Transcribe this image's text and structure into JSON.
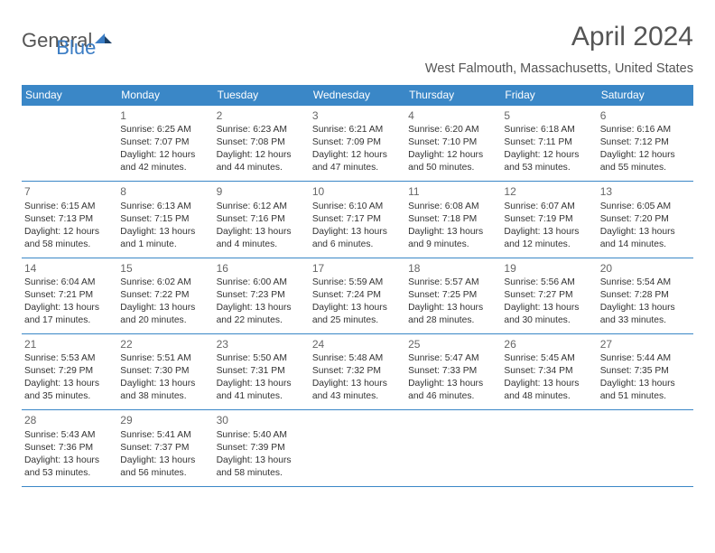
{
  "brand": {
    "part1": "General",
    "part2": "Blue"
  },
  "title": "April 2024",
  "location": "West Falmouth, Massachusetts, United States",
  "colors": {
    "header_bg": "#3a87c7",
    "header_fg": "#ffffff",
    "border": "#3a87c7",
    "text": "#333333",
    "muted": "#666666",
    "brand_gray": "#555555",
    "brand_blue": "#3a7cc4",
    "background": "#ffffff"
  },
  "weekdays": [
    "Sunday",
    "Monday",
    "Tuesday",
    "Wednesday",
    "Thursday",
    "Friday",
    "Saturday"
  ],
  "weeks": [
    [
      null,
      {
        "num": "1",
        "sr": "Sunrise: 6:25 AM",
        "ss": "Sunset: 7:07 PM",
        "d1": "Daylight: 12 hours",
        "d2": "and 42 minutes."
      },
      {
        "num": "2",
        "sr": "Sunrise: 6:23 AM",
        "ss": "Sunset: 7:08 PM",
        "d1": "Daylight: 12 hours",
        "d2": "and 44 minutes."
      },
      {
        "num": "3",
        "sr": "Sunrise: 6:21 AM",
        "ss": "Sunset: 7:09 PM",
        "d1": "Daylight: 12 hours",
        "d2": "and 47 minutes."
      },
      {
        "num": "4",
        "sr": "Sunrise: 6:20 AM",
        "ss": "Sunset: 7:10 PM",
        "d1": "Daylight: 12 hours",
        "d2": "and 50 minutes."
      },
      {
        "num": "5",
        "sr": "Sunrise: 6:18 AM",
        "ss": "Sunset: 7:11 PM",
        "d1": "Daylight: 12 hours",
        "d2": "and 53 minutes."
      },
      {
        "num": "6",
        "sr": "Sunrise: 6:16 AM",
        "ss": "Sunset: 7:12 PM",
        "d1": "Daylight: 12 hours",
        "d2": "and 55 minutes."
      }
    ],
    [
      {
        "num": "7",
        "sr": "Sunrise: 6:15 AM",
        "ss": "Sunset: 7:13 PM",
        "d1": "Daylight: 12 hours",
        "d2": "and 58 minutes."
      },
      {
        "num": "8",
        "sr": "Sunrise: 6:13 AM",
        "ss": "Sunset: 7:15 PM",
        "d1": "Daylight: 13 hours",
        "d2": "and 1 minute."
      },
      {
        "num": "9",
        "sr": "Sunrise: 6:12 AM",
        "ss": "Sunset: 7:16 PM",
        "d1": "Daylight: 13 hours",
        "d2": "and 4 minutes."
      },
      {
        "num": "10",
        "sr": "Sunrise: 6:10 AM",
        "ss": "Sunset: 7:17 PM",
        "d1": "Daylight: 13 hours",
        "d2": "and 6 minutes."
      },
      {
        "num": "11",
        "sr": "Sunrise: 6:08 AM",
        "ss": "Sunset: 7:18 PM",
        "d1": "Daylight: 13 hours",
        "d2": "and 9 minutes."
      },
      {
        "num": "12",
        "sr": "Sunrise: 6:07 AM",
        "ss": "Sunset: 7:19 PM",
        "d1": "Daylight: 13 hours",
        "d2": "and 12 minutes."
      },
      {
        "num": "13",
        "sr": "Sunrise: 6:05 AM",
        "ss": "Sunset: 7:20 PM",
        "d1": "Daylight: 13 hours",
        "d2": "and 14 minutes."
      }
    ],
    [
      {
        "num": "14",
        "sr": "Sunrise: 6:04 AM",
        "ss": "Sunset: 7:21 PM",
        "d1": "Daylight: 13 hours",
        "d2": "and 17 minutes."
      },
      {
        "num": "15",
        "sr": "Sunrise: 6:02 AM",
        "ss": "Sunset: 7:22 PM",
        "d1": "Daylight: 13 hours",
        "d2": "and 20 minutes."
      },
      {
        "num": "16",
        "sr": "Sunrise: 6:00 AM",
        "ss": "Sunset: 7:23 PM",
        "d1": "Daylight: 13 hours",
        "d2": "and 22 minutes."
      },
      {
        "num": "17",
        "sr": "Sunrise: 5:59 AM",
        "ss": "Sunset: 7:24 PM",
        "d1": "Daylight: 13 hours",
        "d2": "and 25 minutes."
      },
      {
        "num": "18",
        "sr": "Sunrise: 5:57 AM",
        "ss": "Sunset: 7:25 PM",
        "d1": "Daylight: 13 hours",
        "d2": "and 28 minutes."
      },
      {
        "num": "19",
        "sr": "Sunrise: 5:56 AM",
        "ss": "Sunset: 7:27 PM",
        "d1": "Daylight: 13 hours",
        "d2": "and 30 minutes."
      },
      {
        "num": "20",
        "sr": "Sunrise: 5:54 AM",
        "ss": "Sunset: 7:28 PM",
        "d1": "Daylight: 13 hours",
        "d2": "and 33 minutes."
      }
    ],
    [
      {
        "num": "21",
        "sr": "Sunrise: 5:53 AM",
        "ss": "Sunset: 7:29 PM",
        "d1": "Daylight: 13 hours",
        "d2": "and 35 minutes."
      },
      {
        "num": "22",
        "sr": "Sunrise: 5:51 AM",
        "ss": "Sunset: 7:30 PM",
        "d1": "Daylight: 13 hours",
        "d2": "and 38 minutes."
      },
      {
        "num": "23",
        "sr": "Sunrise: 5:50 AM",
        "ss": "Sunset: 7:31 PM",
        "d1": "Daylight: 13 hours",
        "d2": "and 41 minutes."
      },
      {
        "num": "24",
        "sr": "Sunrise: 5:48 AM",
        "ss": "Sunset: 7:32 PM",
        "d1": "Daylight: 13 hours",
        "d2": "and 43 minutes."
      },
      {
        "num": "25",
        "sr": "Sunrise: 5:47 AM",
        "ss": "Sunset: 7:33 PM",
        "d1": "Daylight: 13 hours",
        "d2": "and 46 minutes."
      },
      {
        "num": "26",
        "sr": "Sunrise: 5:45 AM",
        "ss": "Sunset: 7:34 PM",
        "d1": "Daylight: 13 hours",
        "d2": "and 48 minutes."
      },
      {
        "num": "27",
        "sr": "Sunrise: 5:44 AM",
        "ss": "Sunset: 7:35 PM",
        "d1": "Daylight: 13 hours",
        "d2": "and 51 minutes."
      }
    ],
    [
      {
        "num": "28",
        "sr": "Sunrise: 5:43 AM",
        "ss": "Sunset: 7:36 PM",
        "d1": "Daylight: 13 hours",
        "d2": "and 53 minutes."
      },
      {
        "num": "29",
        "sr": "Sunrise: 5:41 AM",
        "ss": "Sunset: 7:37 PM",
        "d1": "Daylight: 13 hours",
        "d2": "and 56 minutes."
      },
      {
        "num": "30",
        "sr": "Sunrise: 5:40 AM",
        "ss": "Sunset: 7:39 PM",
        "d1": "Daylight: 13 hours",
        "d2": "and 58 minutes."
      },
      null,
      null,
      null,
      null
    ]
  ]
}
